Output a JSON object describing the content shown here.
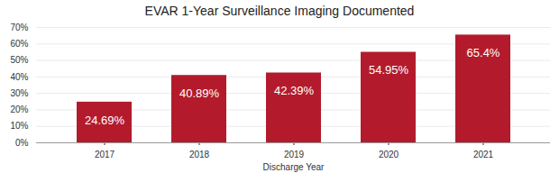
{
  "chart_data": {
    "type": "bar",
    "title": "EVAR 1-Year Surveillance Imaging Documented",
    "x_label": "Discharge Year",
    "categories": [
      "2017",
      "2018",
      "2019",
      "2020",
      "2021"
    ],
    "values": [
      24.69,
      40.89,
      42.39,
      54.95,
      65.4
    ],
    "value_labels": [
      "24.69%",
      "40.89%",
      "42.39%",
      "54.95%",
      "65.4%"
    ],
    "color": "#b31b2c",
    "ylim": [
      0,
      70
    ],
    "yticks": [
      {
        "value": 0,
        "label": "0%"
      },
      {
        "value": 10,
        "label": "10%"
      },
      {
        "value": 20,
        "label": "20%"
      },
      {
        "value": 30,
        "label": "30%"
      },
      {
        "value": 40,
        "label": "40%"
      },
      {
        "value": 50,
        "label": "50%"
      },
      {
        "value": 60,
        "label": "60%"
      },
      {
        "value": 70,
        "label": "70%"
      }
    ],
    "grid": true,
    "data_labels": true
  }
}
